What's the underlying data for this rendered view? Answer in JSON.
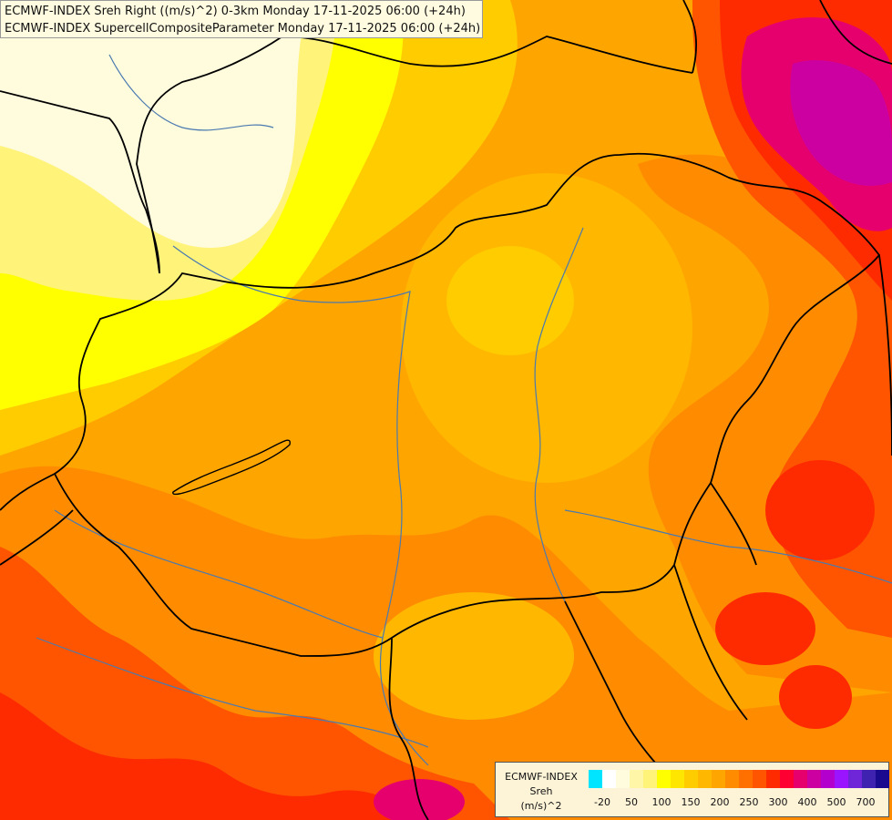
{
  "titles": {
    "line1": "ECMWF-INDEX Sreh Right ((m/s)^2) 0-3km Monday 17-11-2025 06:00 (+24h)",
    "line2": "ECMWF-INDEX SupercellCompositeParameter Monday 17-11-2025 06:00 (+24h)"
  },
  "legend": {
    "model": "ECMWF-INDEX",
    "param": "Sreh",
    "unit": "(m/s)^2",
    "swatches": [
      "#00e5ff",
      "#ffffff",
      "#fffbdd",
      "#fff6a8",
      "#fff37a",
      "#ffff00",
      "#ffe600",
      "#ffcc00",
      "#ffb700",
      "#ffa500",
      "#ff8c00",
      "#ff7000",
      "#ff5500",
      "#ff2b00",
      "#ff0033",
      "#e6006e",
      "#cc00a0",
      "#b300cc",
      "#9a14ff",
      "#6f25d8",
      "#4022b0",
      "#1a0a90"
    ],
    "ticks": [
      "-20",
      "50",
      "100",
      "150",
      "200",
      "250",
      "300",
      "400",
      "500",
      "700"
    ]
  },
  "colors": {
    "pale": "#fffbdd",
    "light_yellow": "#fff37a",
    "yellow": "#ffff00",
    "gold": "#ffcc00",
    "amber": "#ffb700",
    "orange": "#ffa500",
    "dark_orange": "#ff8c00",
    "red_orange": "#ff5500",
    "red": "#ff2b00",
    "crimson": "#e6006e",
    "magenta": "#cc00a0",
    "border": "#000000",
    "river": "#4a7ab0"
  }
}
